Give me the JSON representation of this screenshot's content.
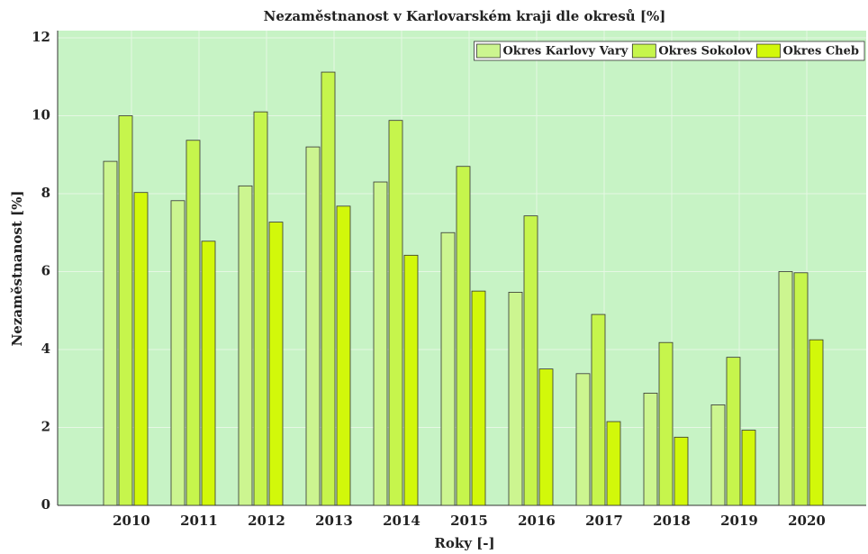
{
  "chart_data": {
    "type": "bar",
    "title": "Nezaměstnanost v Karlovarském kraji dle okresů [%]",
    "xlabel": "Roky [-]",
    "ylabel": "Nezaměstnanost [%]",
    "categories": [
      "2010",
      "2011",
      "2012",
      "2013",
      "2014",
      "2015",
      "2016",
      "2017",
      "2018",
      "2019",
      "2020"
    ],
    "series": [
      {
        "name": "Okres Karlovy Vary",
        "color": "#ccf590",
        "values": [
          8.83,
          7.82,
          8.2,
          9.2,
          8.3,
          7.0,
          5.47,
          3.38,
          2.88,
          2.58,
          6.0
        ]
      },
      {
        "name": "Okres Sokolov",
        "color": "#c6f54c",
        "values": [
          10.0,
          9.37,
          10.1,
          11.12,
          9.88,
          8.7,
          7.43,
          4.9,
          4.18,
          3.8,
          5.97
        ]
      },
      {
        "name": "Okres Cheb",
        "color": "#d2f80a",
        "values": [
          8.03,
          6.78,
          7.27,
          7.68,
          6.42,
          5.5,
          3.5,
          2.15,
          1.75,
          1.93,
          4.25
        ]
      }
    ],
    "ylim": [
      0,
      12
    ],
    "yticks": [
      0,
      2,
      4,
      6,
      8,
      10,
      12
    ],
    "grid": true,
    "legend": "top-right"
  }
}
